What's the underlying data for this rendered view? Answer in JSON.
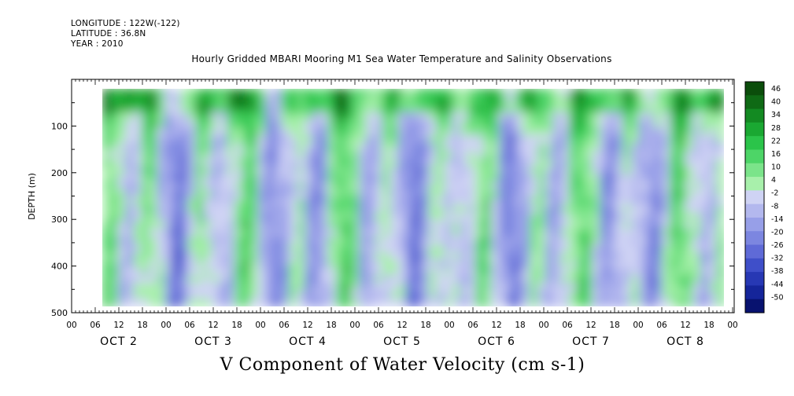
{
  "header": {
    "longitude": "LONGITUDE : 122W(-122)",
    "latitude": "LATITUDE : 36.8N",
    "year": "YEAR : 2010"
  },
  "chart_data": {
    "type": "heatmap",
    "title": "Hourly Gridded MBARI Mooring M1 Sea Water Temperature and Salinity Observations",
    "xlabel": "V Component of Water Velocity (cm s-1)",
    "ylabel": "DEPTH (m)",
    "yticks": [
      100,
      200,
      300,
      400,
      500
    ],
    "ylim": [
      500,
      0
    ],
    "x_hour_ticks": [
      "00",
      "06",
      "12",
      "18",
      "00",
      "06",
      "12",
      "18",
      "00",
      "06",
      "12",
      "18",
      "00",
      "06",
      "12",
      "18",
      "00",
      "06",
      "12",
      "18",
      "00",
      "06",
      "12",
      "18",
      "00",
      "06",
      "12",
      "18",
      "00"
    ],
    "x_day_labels": [
      "OCT 2",
      "OCT 3",
      "OCT 4",
      "OCT 5",
      "OCT 6",
      "OCT 7",
      "OCT 8"
    ],
    "colorbar": {
      "labels": [
        "46",
        "40",
        "34",
        "28",
        "22",
        "16",
        "10",
        "4",
        "-2",
        "-8",
        "-14",
        "-20",
        "-26",
        "-32",
        "-38",
        "-44",
        "-50"
      ],
      "colors": [
        "#0b4d0b",
        "#0f6a15",
        "#138a22",
        "#1aa832",
        "#2bc44a",
        "#4dd567",
        "#7be48a",
        "#a8f0ab",
        "#cfd3f4",
        "#b3b8ee",
        "#979fe8",
        "#7c86e0",
        "#5f6ad7",
        "#3f4fc9",
        "#2738b4",
        "#15259a",
        "#08126f"
      ]
    },
    "notes_visible": "filled contour of V velocity vs time (Oct 1 06h - Oct 8 00h) and depth (~20-490 m)"
  }
}
